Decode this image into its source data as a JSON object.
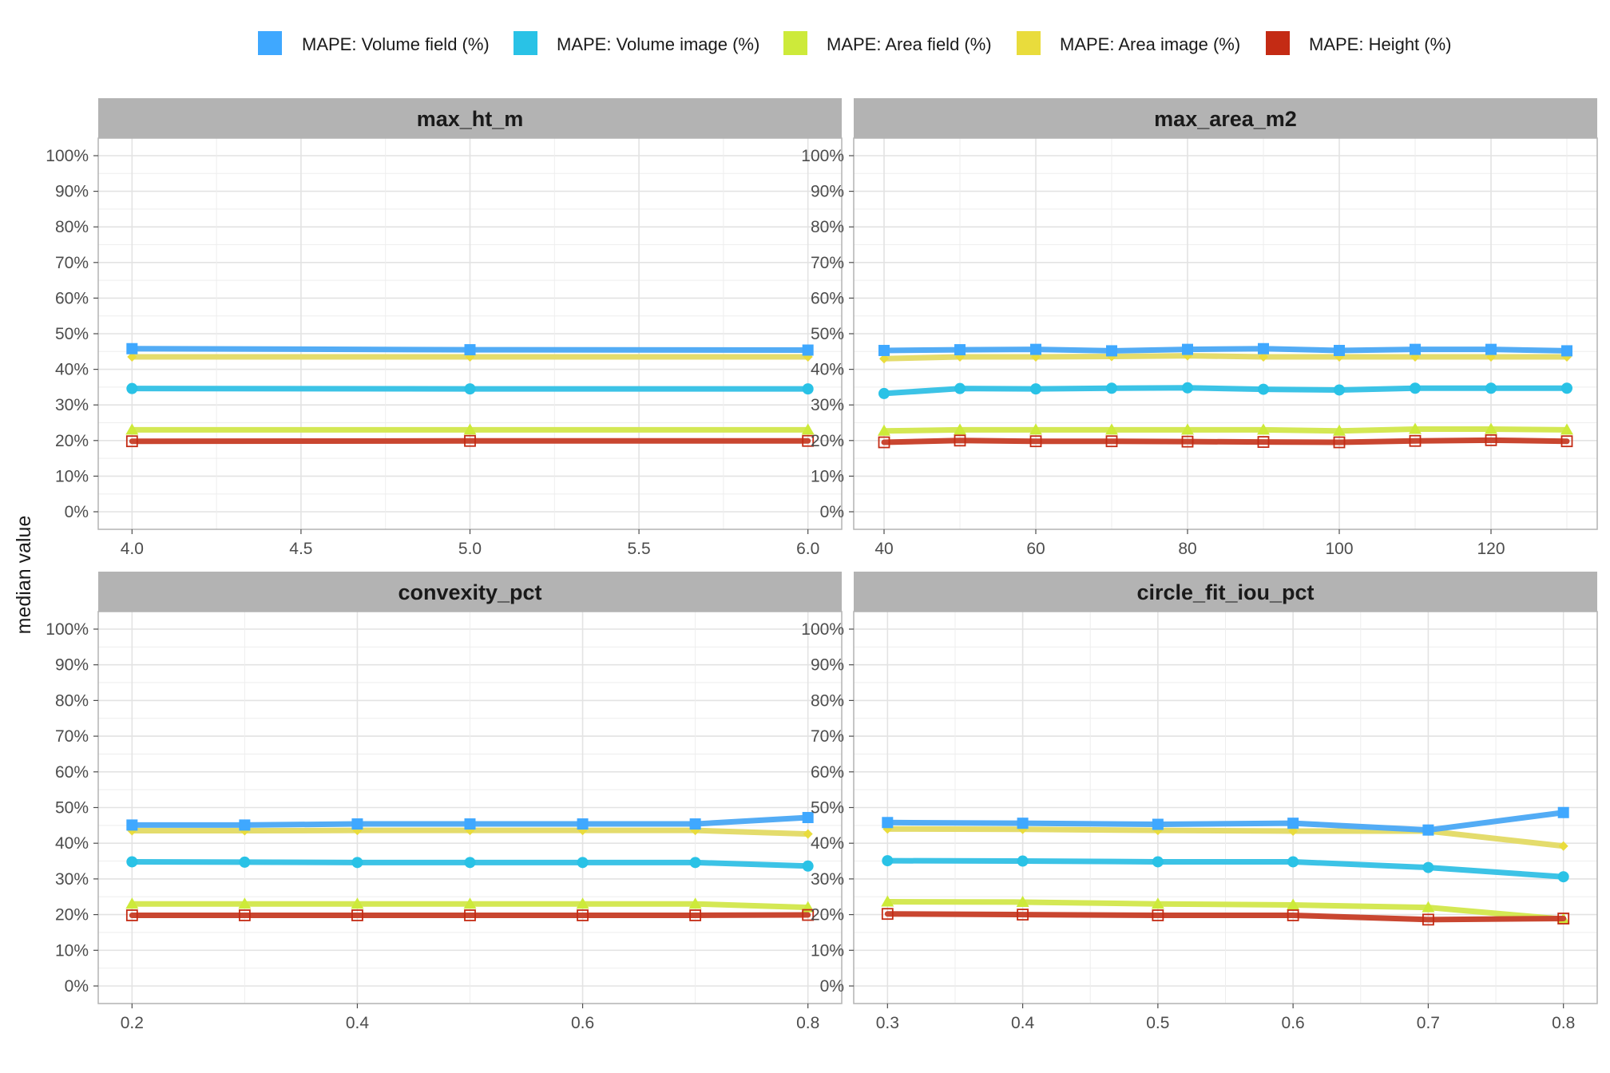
{
  "chart_data": {
    "type": "line",
    "ylabel": "median value",
    "xlabel": "",
    "ylim": [
      0,
      100
    ],
    "y_ticks": [
      0,
      10,
      20,
      30,
      40,
      50,
      60,
      70,
      80,
      90,
      100
    ],
    "y_tick_labels": [
      "0%",
      "10%",
      "20%",
      "30%",
      "40%",
      "50%",
      "60%",
      "70%",
      "80%",
      "90%",
      "100%"
    ],
    "grid": true,
    "legend_position": "top",
    "legend": [
      {
        "key": "vol_field",
        "label": "MAPE: Volume field (%)",
        "color": "#3fa8ff",
        "marker": "square"
      },
      {
        "key": "vol_image",
        "label": "MAPE: Volume image (%)",
        "color": "#29c2e6",
        "marker": "circle"
      },
      {
        "key": "area_field",
        "label": "MAPE: Area field (%)",
        "color": "#cdea3a",
        "marker": "triangle"
      },
      {
        "key": "area_image",
        "label": "MAPE: Area image (%)",
        "color": "#e9dc3c",
        "marker": "diamond"
      },
      {
        "key": "height",
        "label": "MAPE: Height (%)",
        "color": "#c42b14",
        "marker": "open-square"
      }
    ],
    "panels": [
      {
        "title": "max_ht_m",
        "xlim": [
          3.9,
          6.1
        ],
        "x_ticks": [
          4.0,
          4.5,
          5.0,
          5.5,
          6.0
        ],
        "x_tick_labels": [
          "4.0",
          "4.5",
          "5.0",
          "5.5",
          "6.0"
        ],
        "x": [
          4.0,
          5.0,
          6.0
        ],
        "series": {
          "vol_field": [
            45.8,
            45.5,
            45.4
          ],
          "vol_image": [
            34.6,
            34.5,
            34.5
          ],
          "area_field": [
            23.0,
            23.0,
            23.0
          ],
          "area_image": [
            43.5,
            43.5,
            43.5
          ],
          "height": [
            19.8,
            19.9,
            19.9
          ]
        }
      },
      {
        "title": "max_area_m2",
        "xlim": [
          36,
          134
        ],
        "x_ticks": [
          40,
          60,
          80,
          100,
          120
        ],
        "x_tick_labels": [
          "40",
          "60",
          "80",
          "100",
          "120"
        ],
        "x": [
          40,
          50,
          60,
          70,
          80,
          90,
          100,
          110,
          120,
          130
        ],
        "series": {
          "vol_field": [
            45.3,
            45.5,
            45.6,
            45.2,
            45.6,
            45.8,
            45.3,
            45.6,
            45.6,
            45.2
          ],
          "vol_image": [
            33.2,
            34.6,
            34.5,
            34.7,
            34.8,
            34.4,
            34.2,
            34.7,
            34.7,
            34.7
          ],
          "area_field": [
            22.7,
            23.0,
            23.0,
            23.0,
            23.0,
            23.0,
            22.7,
            23.2,
            23.2,
            23.0
          ],
          "area_image": [
            43.0,
            43.5,
            43.5,
            43.6,
            43.8,
            43.5,
            43.5,
            43.5,
            43.5,
            43.5
          ],
          "height": [
            19.5,
            20.0,
            19.8,
            19.8,
            19.7,
            19.6,
            19.5,
            19.9,
            20.1,
            19.8
          ]
        }
      },
      {
        "title": "convexity_pct",
        "xlim": [
          0.17,
          0.83
        ],
        "x_ticks": [
          0.2,
          0.4,
          0.6,
          0.8
        ],
        "x_tick_labels": [
          "0.2",
          "0.4",
          "0.6",
          "0.8"
        ],
        "x": [
          0.2,
          0.3,
          0.4,
          0.5,
          0.6,
          0.7,
          0.8
        ],
        "series": {
          "vol_field": [
            45.1,
            45.1,
            45.4,
            45.4,
            45.4,
            45.4,
            47.2
          ],
          "vol_image": [
            34.8,
            34.7,
            34.6,
            34.6,
            34.6,
            34.6,
            33.6
          ],
          "area_field": [
            23.0,
            23.0,
            23.0,
            23.0,
            23.0,
            23.0,
            22.0
          ],
          "area_image": [
            43.5,
            43.5,
            43.6,
            43.6,
            43.6,
            43.6,
            42.6
          ],
          "height": [
            19.8,
            19.8,
            19.8,
            19.8,
            19.8,
            19.8,
            19.9
          ]
        }
      },
      {
        "title": "circle_fit_iou_pct",
        "xlim": [
          0.275,
          0.825
        ],
        "x_ticks": [
          0.3,
          0.4,
          0.5,
          0.6,
          0.7,
          0.8
        ],
        "x_tick_labels": [
          "0.3",
          "0.4",
          "0.5",
          "0.6",
          "0.7",
          "0.8"
        ],
        "x": [
          0.3,
          0.4,
          0.5,
          0.6,
          0.7,
          0.8
        ],
        "series": {
          "vol_field": [
            45.8,
            45.6,
            45.3,
            45.6,
            43.7,
            48.6
          ],
          "vol_image": [
            35.1,
            35.0,
            34.8,
            34.8,
            33.2,
            30.6
          ],
          "area_field": [
            23.6,
            23.5,
            23.0,
            22.7,
            22.0,
            18.7
          ],
          "area_image": [
            44.0,
            43.9,
            43.6,
            43.4,
            43.4,
            39.2
          ],
          "height": [
            20.2,
            20.0,
            19.8,
            19.8,
            18.6,
            18.9
          ]
        }
      }
    ]
  }
}
